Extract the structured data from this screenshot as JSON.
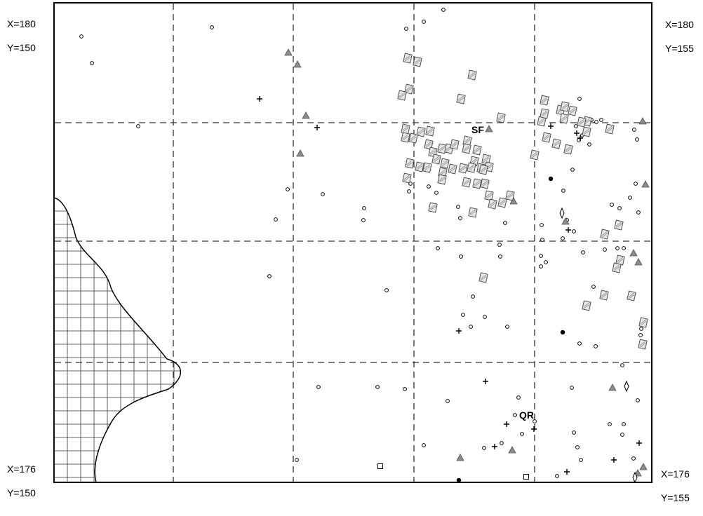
{
  "corners": {
    "top_left": {
      "x": "X=180",
      "y": "Y=150"
    },
    "top_right": {
      "x": "X=180",
      "y": "Y=155"
    },
    "bottom_left": {
      "x": "X=176",
      "y": "Y=150"
    },
    "bottom_right": {
      "x": "X=176",
      "y": "Y=155"
    }
  },
  "labels": {
    "sf": "SF",
    "qr": "QR"
  },
  "symbol_types": [
    "open-circle",
    "filled-circle",
    "triangle",
    "plus",
    "hatched-square",
    "open-square",
    "diamond"
  ],
  "colors": {
    "triangle_fill": "#8c8c8c",
    "hatch_fill": "#e6e6e6",
    "line": "#000000"
  }
}
